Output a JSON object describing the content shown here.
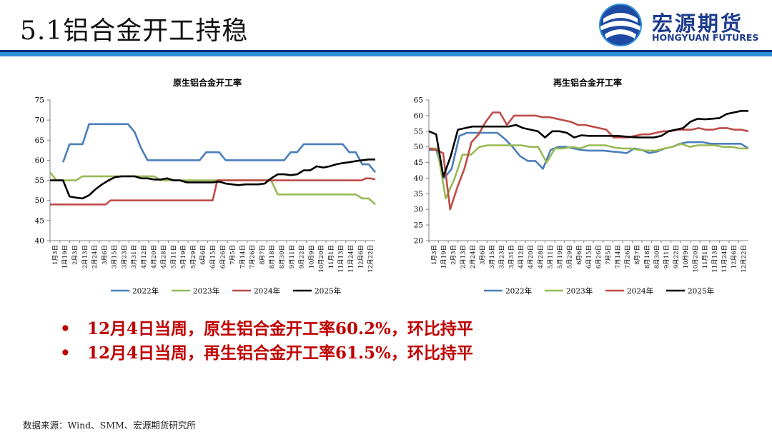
{
  "slide": {
    "title": "5.1铝合金开工持稳"
  },
  "logo": {
    "cn": "宏源期货",
    "en": "HONGYUAN FUTURES"
  },
  "bullets": [
    "12月4日当周，原生铝合金开工率60.2%，环比持平",
    "12月4日当周，再生铝合金开工率61.5%，环比持平"
  ],
  "source": "数据来源：Wind、SMM、宏源期货研究所",
  "chart_data": [
    {
      "type": "line",
      "title": "原生铝合金开工率",
      "xlabel": "",
      "ylabel": "",
      "ylim": [
        40,
        75
      ],
      "yticks": [
        40,
        45,
        50,
        55,
        60,
        65,
        70,
        75
      ],
      "grid": false,
      "legend": "bottom",
      "x_ticks": [
        "1月3日",
        "1月19日",
        "2月3日",
        "2月13日",
        "2月24日",
        "3月6日",
        "3月15日",
        "3月23日",
        "3月31日",
        "4月12日",
        "4月20日",
        "4月28日",
        "5月11日",
        "5月19日",
        "5月29日",
        "6月6日",
        "6月15日",
        "6月26日",
        "7月5日",
        "7月14日",
        "7月26日",
        "8月7日",
        "8月18日",
        "8月30日",
        "9月11日",
        "9月22日",
        "10月9日",
        "10月20日",
        "11月1日",
        "11月13日",
        "11月24日",
        "12月6日",
        "12月22日"
      ],
      "series": [
        {
          "name": "2022年",
          "color": "#4a7ebb",
          "values": [
            null,
            null,
            59.5,
            64,
            64,
            64,
            69,
            69,
            69,
            69,
            69,
            69,
            69,
            67,
            63,
            60,
            60,
            60,
            60,
            60,
            60,
            60,
            60,
            60,
            62,
            62,
            62,
            60,
            60,
            60,
            60,
            60,
            60,
            60,
            60,
            60,
            60,
            62,
            62,
            64,
            64,
            64,
            64,
            64,
            64,
            64,
            62,
            62,
            59,
            59,
            57
          ]
        },
        {
          "name": "2023年",
          "color": "#98b954",
          "values": [
            57,
            55,
            55,
            55,
            55,
            56,
            56,
            56,
            56,
            56,
            56,
            56,
            56,
            56,
            56,
            56,
            56,
            55,
            55,
            55,
            55,
            55,
            55,
            55,
            55,
            55,
            55,
            55,
            55,
            55,
            55,
            55,
            55,
            55,
            55,
            51.5,
            51.5,
            51.5,
            51.5,
            51.5,
            51.5,
            51.5,
            51.5,
            51.5,
            51.5,
            51.5,
            51.5,
            51.5,
            50.5,
            50.5,
            49
          ]
        },
        {
          "name": "2024年",
          "color": "#be4b48",
          "values": [
            49,
            49,
            49,
            49,
            49,
            49,
            49,
            49,
            49,
            49,
            49,
            49,
            49,
            50,
            50,
            50,
            50,
            50,
            50,
            50,
            50,
            50,
            50,
            50,
            50,
            50,
            50,
            50,
            50,
            50,
            50,
            50,
            50,
            50,
            50,
            50,
            55,
            55,
            55,
            55,
            55,
            55,
            55,
            55,
            55,
            55,
            55,
            55,
            55,
            55,
            55,
            55,
            55,
            55,
            55,
            55,
            55,
            55,
            55,
            55,
            55,
            55,
            55,
            55,
            55,
            55,
            55,
            55,
            55.5,
            55.5,
            55.2
          ]
        },
        {
          "name": "2025年",
          "color": "#000000",
          "values": [
            55,
            55,
            55,
            51,
            50.7,
            50.5,
            51.3,
            52.8,
            54,
            55,
            55.8,
            56,
            56,
            56,
            55.5,
            55.5,
            55.2,
            55.2,
            55.5,
            55,
            55,
            54.5,
            54.5,
            54.5,
            54.5,
            54.5,
            54.7,
            54.2,
            54,
            53.8,
            54,
            54,
            54,
            54.2,
            55.5,
            56.5,
            56.5,
            56.3,
            56.5,
            57.5,
            57.5,
            58.5,
            58.2,
            58.5,
            59,
            59.3,
            59.5,
            59.8,
            60,
            60.2,
            60.2
          ]
        }
      ]
    },
    {
      "type": "line",
      "title": "再生铝合金开工率",
      "xlabel": "",
      "ylabel": "",
      "ylim": [
        20,
        65
      ],
      "yticks": [
        20,
        25,
        30,
        35,
        40,
        45,
        50,
        55,
        60,
        65
      ],
      "grid": false,
      "legend": "bottom",
      "x_ticks": [
        "1月3日",
        "1月19日",
        "2月3日",
        "2月13日",
        "2月24日",
        "3月6日",
        "3月15日",
        "3月23日",
        "3月31日",
        "4月12日",
        "4月20日",
        "4月28日",
        "5月11日",
        "5月19日",
        "5月29日",
        "6月6日",
        "6月15日",
        "6月26日",
        "7月5日",
        "7月14日",
        "7月26日",
        "8月7日",
        "8月18日",
        "8月30日",
        "9月11日",
        "9月22日",
        "10月9日",
        "10月20日",
        "11月1日",
        "11月13日",
        "11月24日",
        "12月6日",
        "12月22日"
      ],
      "series": [
        {
          "name": "2022年",
          "color": "#4a7ebb",
          "values": [
            49,
            49,
            40,
            43,
            53.5,
            54.5,
            54.5,
            54.5,
            54.5,
            54.5,
            52.5,
            50,
            47,
            45.5,
            45.5,
            43,
            49,
            50,
            50,
            49.5,
            49,
            48.8,
            48.8,
            48.8,
            48.5,
            48.3,
            48,
            49.5,
            49,
            48,
            48.5,
            49.5,
            50,
            51,
            51.5,
            51.5,
            51.5,
            51,
            51,
            51,
            51,
            51,
            49.5
          ]
        },
        {
          "name": "2023年",
          "color": "#98b954",
          "values": [
            49.5,
            49.5,
            33.5,
            39.5,
            47.5,
            47.5,
            50,
            50.5,
            50.5,
            50.5,
            50.5,
            50.5,
            50,
            50,
            45,
            49.5,
            49.5,
            50,
            49.5,
            50.5,
            50.5,
            50.5,
            49.8,
            49.5,
            49.5,
            49,
            48.8,
            48.8,
            49.5,
            50,
            51,
            50,
            50.5,
            50.5,
            50.5,
            50,
            50,
            49.5,
            49.5
          ]
        },
        {
          "name": "2024年",
          "color": "#be4b48",
          "values": [
            49.5,
            49,
            48,
            30,
            37,
            43,
            51.5,
            54,
            58,
            61,
            61,
            57,
            60,
            60,
            60,
            60,
            59.5,
            59.5,
            59,
            58.5,
            58,
            57,
            57,
            56.5,
            56,
            55.5,
            53,
            53,
            53,
            53.5,
            54,
            54,
            54.5,
            55,
            55,
            55.5,
            55.5,
            55.5,
            56,
            55.5,
            55.5,
            56,
            56,
            55.5,
            55.5,
            55
          ]
        },
        {
          "name": "2025年",
          "color": "#000000",
          "values": [
            55,
            54,
            40.5,
            47,
            55.5,
            56,
            56.5,
            56.5,
            56.5,
            56.5,
            56.5,
            56.5,
            57,
            56,
            55.5,
            55,
            53,
            55,
            55,
            54.5,
            53,
            53.7,
            53.5,
            53.5,
            53.5,
            53.5,
            53.5,
            53.3,
            53.1,
            53,
            53,
            53,
            53.5,
            55,
            55.5,
            56,
            58,
            59,
            58.8,
            59,
            59.2,
            60.5,
            61,
            61.5,
            61.5
          ]
        }
      ]
    }
  ]
}
